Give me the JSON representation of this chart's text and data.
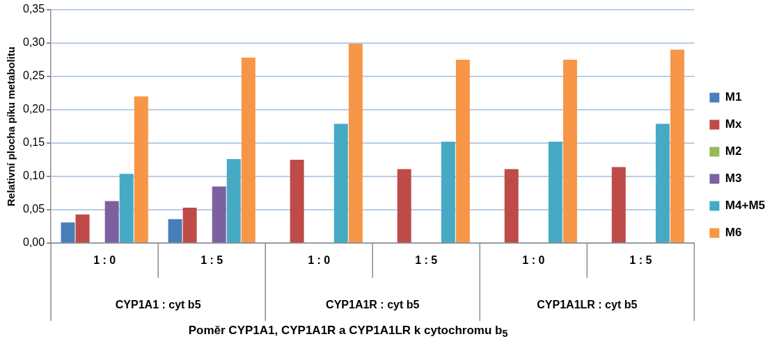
{
  "chart_data": {
    "type": "bar",
    "categories": [
      "1 : 0",
      "1 : 5",
      "1 : 0",
      "1 : 5",
      "1 : 0",
      "1 : 5"
    ],
    "series": [
      {
        "name": "M1",
        "color": "#4a7ebb",
        "values": [
          0.031,
          0.036,
          null,
          null,
          null,
          null
        ]
      },
      {
        "name": "Mx",
        "color": "#be4b48",
        "values": [
          0.043,
          0.053,
          0.125,
          0.111,
          0.111,
          0.114
        ]
      },
      {
        "name": "M2",
        "color": "#98b954",
        "values": [
          null,
          null,
          null,
          null,
          null,
          null
        ]
      },
      {
        "name": "M3",
        "color": "#7d60a0",
        "values": [
          0.063,
          0.085,
          null,
          null,
          null,
          null
        ]
      },
      {
        "name": "M4+M5",
        "color": "#46aac5",
        "values": [
          0.104,
          0.126,
          0.179,
          0.152,
          0.152,
          0.179
        ]
      },
      {
        "name": "M6",
        "color": "#f79646",
        "values": [
          0.22,
          0.278,
          0.299,
          0.275,
          0.275,
          0.29
        ]
      }
    ],
    "annotations": [
      "CYP1A1 : cyt b5",
      "CYP1A1R : cyt b5",
      "CYP1A1LR : cyt b5"
    ],
    "xlabel": "Poměr CYP1A1, CYP1A1R a CYP1A1LR k cytochromu b$_{5}$",
    "ylabel": "Relativní plocha píku metabolitu",
    "ylim": [
      0,
      0.35
    ],
    "yticks": [
      {
        "value": 0,
        "label": "0,00"
      },
      {
        "value": 0.05,
        "label": "0,05"
      },
      {
        "value": 0.1,
        "label": "0,10"
      },
      {
        "value": 0.15,
        "label": "0,15"
      },
      {
        "value": 0.2,
        "label": "0,20"
      },
      {
        "value": 0.25,
        "label": "0,25"
      },
      {
        "value": 0.3,
        "label": "0,30"
      },
      {
        "value": 0.35,
        "label": "0,35"
      }
    ],
    "grid": "y",
    "legend": "right"
  }
}
